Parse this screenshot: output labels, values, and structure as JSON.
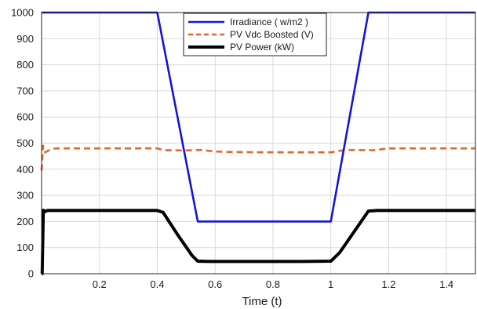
{
  "chart_data": {
    "type": "line",
    "xlabel": "Time (t)",
    "ylabel": "",
    "xlim": [
      0,
      1.5
    ],
    "ylim": [
      0,
      1000
    ],
    "grid": true,
    "legend_position": "top-center",
    "x_ticks": [
      "0.2",
      "0.4",
      "0.6",
      "0.8",
      "1",
      "1.2",
      "1.4"
    ],
    "y_ticks": [
      "0",
      "100",
      "200",
      "300",
      "400",
      "500",
      "600",
      "700",
      "800",
      "900",
      "1000"
    ],
    "series": [
      {
        "name": "Irradiance ( w/m2 )",
        "color": "#1515d6",
        "style": "solid",
        "x": [
          0,
          0.4,
          0.54,
          1.0,
          1.13,
          1.5
        ],
        "y": [
          1000,
          1000,
          200,
          200,
          1000,
          1000
        ]
      },
      {
        "name": "PV Vdc Boosted (V)",
        "color": "#e06a2b",
        "style": "dashed",
        "x": [
          0,
          0.005,
          0.012,
          0.03,
          0.05,
          0.1,
          0.2,
          0.4,
          0.42,
          0.5,
          0.55,
          0.6,
          0.65,
          0.8,
          1.0,
          1.05,
          1.15,
          1.2,
          1.3,
          1.5
        ],
        "y": [
          395,
          490,
          465,
          475,
          480,
          480,
          480,
          480,
          473,
          472,
          474,
          468,
          466,
          465,
          465,
          474,
          473,
          480,
          480,
          480
        ]
      },
      {
        "name": "PV Power (kW)",
        "color": "#000000",
        "style": "solid-thick",
        "x": [
          0,
          0.002,
          0.006,
          0.012,
          0.02,
          0.05,
          0.4,
          0.42,
          0.47,
          0.52,
          0.54,
          0.58,
          0.9,
          1.0,
          1.03,
          1.08,
          1.13,
          1.16,
          1.5
        ],
        "y": [
          0,
          0,
          243,
          238,
          242,
          242,
          242,
          235,
          150,
          70,
          48,
          47,
          47,
          48,
          80,
          160,
          240,
          242,
          242
        ]
      }
    ]
  }
}
